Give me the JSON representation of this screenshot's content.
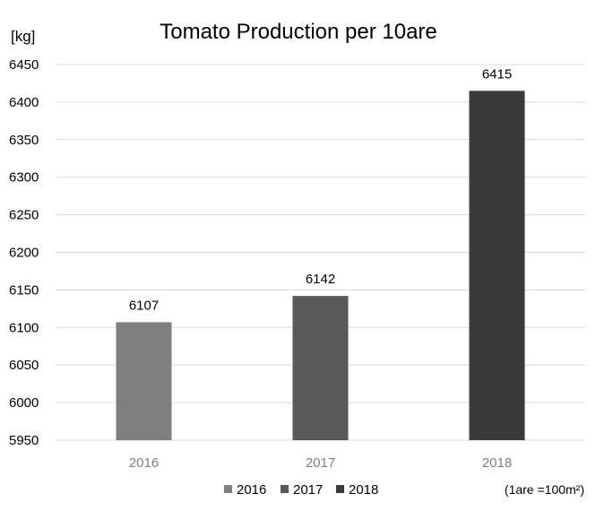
{
  "chart_data": {
    "type": "bar",
    "title": "Tomato Production per 10are",
    "unit_label": "[kg]",
    "categories": [
      "2016",
      "2017",
      "2018"
    ],
    "series": [
      {
        "name": "2016",
        "values": [
          6107,
          null,
          null
        ],
        "color": "#7f7f7f"
      },
      {
        "name": "2017",
        "values": [
          null,
          6142,
          null
        ],
        "color": "#595959"
      },
      {
        "name": "2018",
        "values": [
          null,
          null,
          6415
        ],
        "color": "#3a3a3a"
      }
    ],
    "values": [
      6107,
      6142,
      6415
    ],
    "data_labels": [
      "6107",
      "6142",
      "6415"
    ],
    "ylim": [
      5950,
      6450
    ],
    "yticks": [
      "6450",
      "6400",
      "6350",
      "6300",
      "6250",
      "6200",
      "6150",
      "6100",
      "6050",
      "6000",
      "5950"
    ],
    "grid": true,
    "legend_position": "bottom",
    "note": "(1are =100m²)"
  }
}
